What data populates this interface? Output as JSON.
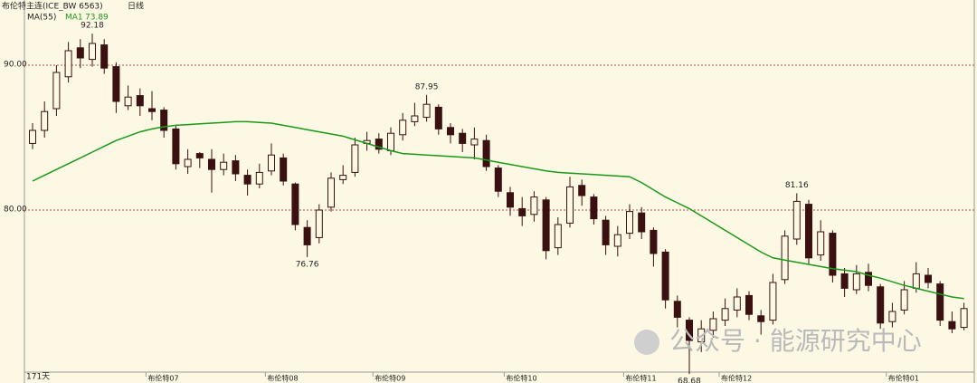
{
  "chart_data": {
    "type": "candlestick",
    "title": "布伦特主连(ICE_BW 6563)",
    "period": "日线",
    "ma_name": "MA(55)",
    "ma_label": "MA1",
    "bar_count_label": "171天",
    "watermark": "公众号 · 能源研究中心",
    "up_color": "#fdf8e3",
    "down_color": "#3a1010",
    "ma_color": "#1a9a1a",
    "grid": true,
    "ylim": [
      68.875,
      94.5
    ],
    "yticks": [
      {
        "value": 80,
        "label": "80.00"
      },
      {
        "value": 90,
        "label": "90.00"
      }
    ],
    "categories": [
      null,
      null,
      null,
      null,
      null,
      null,
      null,
      null,
      null,
      null,
      "布伦特07",
      null,
      null,
      null,
      null,
      null,
      null,
      null,
      null,
      null,
      "布伦特08",
      null,
      null,
      null,
      null,
      null,
      null,
      null,
      null,
      "布伦特09",
      null,
      null,
      null,
      null,
      null,
      null,
      null,
      null,
      null,
      null,
      "布伦特10",
      null,
      null,
      null,
      null,
      null,
      null,
      null,
      null,
      null,
      "布伦特11",
      null,
      null,
      null,
      null,
      null,
      null,
      null,
      "布伦特12",
      null,
      null,
      null,
      null,
      null,
      null,
      null,
      null,
      null,
      null,
      null,
      null,
      null,
      "布伦特01",
      null,
      null,
      null,
      null,
      null,
      null
    ],
    "open": [
      84.6,
      85.5,
      87.0,
      89.2,
      91.2,
      90.4,
      91.4,
      89.9,
      87.2,
      87.9,
      87.0,
      86.9,
      85.6,
      83.0,
      83.9,
      83.5,
      82.8,
      83.4,
      82.4,
      81.8,
      82.7,
      83.6,
      81.8,
      78.8,
      78.1,
      80.2,
      82.1,
      82.6,
      84.6,
      84.9,
      84.1,
      85.2,
      86.1,
      86.4,
      87.1,
      85.7,
      85.3,
      84.5,
      84.8,
      82.9,
      81.2,
      80.1,
      79.7,
      80.7,
      77.4,
      79.1,
      81.7,
      80.9,
      79.3,
      77.5,
      78.4,
      79.8,
      78.6,
      77.1,
      73.7,
      72.4,
      70.9,
      71.7,
      72.4,
      73.1,
      74.1,
      72.7,
      72.4,
      75.2,
      78.0,
      80.4,
      76.9,
      78.4,
      75.6,
      74.5,
      75.7,
      74.7,
      72.3,
      73.1,
      74.6,
      75.5,
      74.9,
      72.3,
      71.9
    ],
    "high": [
      86.0,
      87.5,
      90.0,
      91.6,
      91.8,
      92.18,
      91.8,
      90.2,
      88.6,
      88.4,
      88.2,
      87.1,
      85.8,
      84.2,
      84.0,
      84.2,
      83.9,
      83.8,
      82.8,
      83.2,
      84.6,
      83.9,
      81.9,
      79.3,
      80.4,
      82.6,
      83.1,
      85.0,
      85.4,
      85.3,
      85.7,
      86.7,
      87.4,
      87.95,
      87.3,
      86.0,
      85.6,
      85.7,
      85.2,
      83.1,
      81.6,
      80.9,
      81.3,
      80.9,
      79.5,
      82.3,
      82.1,
      81.1,
      79.6,
      78.9,
      80.4,
      80.2,
      78.8,
      77.3,
      74.1,
      72.6,
      72.4,
      73.0,
      73.9,
      74.6,
      74.4,
      73.1,
      75.6,
      78.6,
      81.16,
      80.7,
      79.3,
      78.6,
      76.0,
      76.2,
      76.3,
      74.9,
      73.6,
      75.1,
      76.4,
      76.0,
      75.1,
      73.0,
      73.6
    ],
    "low": [
      84.2,
      85.0,
      86.5,
      88.8,
      89.8,
      89.9,
      89.4,
      86.7,
      86.9,
      86.5,
      86.2,
      85.0,
      82.8,
      82.5,
      82.9,
      81.2,
      82.4,
      82.0,
      81.0,
      81.5,
      82.4,
      81.7,
      78.6,
      76.76,
      77.7,
      79.9,
      81.8,
      82.3,
      84.1,
      83.9,
      83.8,
      84.8,
      85.8,
      86.1,
      85.2,
      84.6,
      84.0,
      83.5,
      82.7,
      80.9,
      79.6,
      78.9,
      79.2,
      76.6,
      76.9,
      78.8,
      80.3,
      79.0,
      76.9,
      76.8,
      78.0,
      78.0,
      76.1,
      73.2,
      71.9,
      68.68,
      70.2,
      71.2,
      72.0,
      72.6,
      72.4,
      71.4,
      72.1,
      74.9,
      77.6,
      76.3,
      76.5,
      75.0,
      74.0,
      74.2,
      74.4,
      71.8,
      71.9,
      72.8,
      74.3,
      74.6,
      72.0,
      71.5,
      71.7
    ],
    "close": [
      85.5,
      86.8,
      89.5,
      91.0,
      90.5,
      91.5,
      89.8,
      87.5,
      87.8,
      87.2,
      86.8,
      85.5,
      83.2,
      83.5,
      83.6,
      82.8,
      83.3,
      82.5,
      81.8,
      82.6,
      83.8,
      82.0,
      79.0,
      77.6,
      80.0,
      82.2,
      82.4,
      84.5,
      84.8,
      84.2,
      85.3,
      86.2,
      86.5,
      87.3,
      85.6,
      85.2,
      84.6,
      84.9,
      83.0,
      81.3,
      80.2,
      79.6,
      80.9,
      77.2,
      79.0,
      81.6,
      81.0,
      79.4,
      77.6,
      78.3,
      79.9,
      78.5,
      77.0,
      73.8,
      72.6,
      71.0,
      71.8,
      72.5,
      73.2,
      74.0,
      72.8,
      72.3,
      75.0,
      78.2,
      80.6,
      76.7,
      78.5,
      75.5,
      74.6,
      75.6,
      74.8,
      72.2,
      73.0,
      74.5,
      75.6,
      75.0,
      72.4,
      71.8,
      73.2
    ],
    "ma": [
      82.0,
      82.4,
      82.8,
      83.2,
      83.6,
      84.0,
      84.4,
      84.8,
      85.1,
      85.4,
      85.6,
      85.75,
      85.85,
      85.9,
      85.95,
      86.0,
      86.05,
      86.1,
      86.1,
      86.05,
      86.0,
      85.85,
      85.7,
      85.55,
      85.4,
      85.25,
      85.1,
      84.85,
      84.6,
      84.35,
      84.1,
      83.9,
      83.85,
      83.8,
      83.75,
      83.7,
      83.65,
      83.6,
      83.45,
      83.3,
      83.15,
      83.0,
      82.85,
      82.7,
      82.6,
      82.55,
      82.5,
      82.45,
      82.4,
      82.35,
      82.3,
      81.9,
      81.4,
      80.9,
      80.5,
      80.1,
      79.6,
      79.1,
      78.6,
      78.1,
      77.6,
      77.1,
      76.7,
      76.55,
      76.4,
      76.25,
      76.1,
      75.95,
      75.85,
      75.75,
      75.5,
      75.3,
      75.05,
      74.8,
      74.6,
      74.4,
      74.2,
      74.0,
      73.89
    ],
    "annotations": [
      92.18,
      87.95,
      76.76,
      81.16,
      68.68
    ]
  }
}
